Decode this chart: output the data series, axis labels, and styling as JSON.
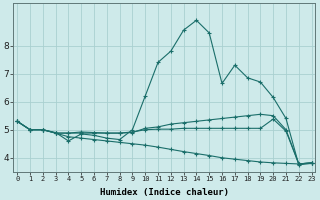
{
  "xlabel": "Humidex (Indice chaleur)",
  "ylabel": "",
  "bg_color": "#ceeaea",
  "grid_color": "#aad0d0",
  "line_color": "#1a6e6a",
  "x_values": [
    0,
    1,
    2,
    3,
    4,
    5,
    6,
    7,
    8,
    9,
    10,
    11,
    12,
    13,
    14,
    15,
    16,
    17,
    18,
    19,
    20,
    21,
    22,
    23
  ],
  "series": [
    [
      5.3,
      5.0,
      5.0,
      4.9,
      4.6,
      4.85,
      4.8,
      4.7,
      4.65,
      5.0,
      6.2,
      7.4,
      7.8,
      8.55,
      8.9,
      8.45,
      6.65,
      7.3,
      6.85,
      6.7,
      6.15,
      5.4,
      3.75,
      3.8
    ],
    [
      5.3,
      5.0,
      5.0,
      4.88,
      4.88,
      4.92,
      4.9,
      4.88,
      4.88,
      4.9,
      5.05,
      5.1,
      5.2,
      5.25,
      5.3,
      5.35,
      5.4,
      5.45,
      5.5,
      5.55,
      5.5,
      5.0,
      3.78,
      3.82
    ],
    [
      5.3,
      5.0,
      5.0,
      4.88,
      4.75,
      4.7,
      4.65,
      4.6,
      4.55,
      4.5,
      4.45,
      4.38,
      4.3,
      4.22,
      4.15,
      4.08,
      4.0,
      3.95,
      3.9,
      3.85,
      3.82,
      3.8,
      3.78,
      3.82
    ],
    [
      5.3,
      5.0,
      5.0,
      4.88,
      4.88,
      4.88,
      4.88,
      4.88,
      4.88,
      4.92,
      5.0,
      5.02,
      5.02,
      5.05,
      5.05,
      5.05,
      5.05,
      5.05,
      5.05,
      5.05,
      5.38,
      4.95,
      3.78,
      3.82
    ]
  ],
  "xlim": [
    -0.3,
    23.3
  ],
  "ylim": [
    3.5,
    9.5
  ],
  "yticks": [
    4,
    5,
    6,
    7,
    8
  ],
  "xticks": [
    0,
    1,
    2,
    3,
    4,
    5,
    6,
    7,
    8,
    9,
    10,
    11,
    12,
    13,
    14,
    15,
    16,
    17,
    18,
    19,
    20,
    21,
    22,
    23
  ]
}
